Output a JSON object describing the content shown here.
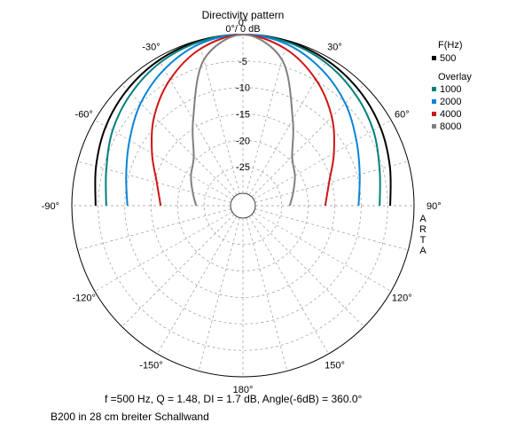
{
  "chart_data": {
    "type": "polar-line",
    "title": "Directivity pattern",
    "top_label": "0°/ 0 dB",
    "side_label": "ARTA",
    "radial_range_db": [
      -30,
      0
    ],
    "radial_ticks": [
      -5,
      -10,
      -15,
      -20,
      -25
    ],
    "angle_ticks": [
      "0°",
      "30°",
      "60°",
      "90°",
      "120°",
      "150°",
      "180°",
      "-150°",
      "-120°",
      "-90°",
      "-60°",
      "-30°"
    ],
    "grid": true,
    "legend": {
      "f_header": "F(Hz)",
      "f_items": [
        {
          "label": "500",
          "color": "#000000"
        }
      ],
      "overlay_header": "Overlay",
      "overlay_items": [
        {
          "label": "1000",
          "color": "#00807b"
        },
        {
          "label": "2000",
          "color": "#0a84d8"
        },
        {
          "label": "4000",
          "color": "#d01414"
        },
        {
          "label": "8000",
          "color": "#808080"
        }
      ]
    },
    "angles": [
      -90,
      -75,
      -60,
      -45,
      -30,
      -15,
      0,
      15,
      30,
      45,
      60,
      75,
      90
    ],
    "series": [
      {
        "name": "500",
        "color": "#000000",
        "values": [
          -4.5,
          -3.6,
          -2.4,
          -1.4,
          -0.6,
          -0.1,
          0,
          -0.1,
          -0.6,
          -1.4,
          -2.4,
          -3.6,
          -4.5
        ]
      },
      {
        "name": "1000",
        "color": "#00807b",
        "values": [
          -6.5,
          -5.6,
          -3.9,
          -2.4,
          -1.1,
          -0.3,
          0,
          -0.3,
          -1.1,
          -2.4,
          -3.9,
          -5.6,
          -6.5
        ]
      },
      {
        "name": "2000",
        "color": "#0a84d8",
        "values": [
          -10.5,
          -9.5,
          -7.6,
          -5.0,
          -2.6,
          -0.7,
          0,
          -0.7,
          -2.6,
          -5.0,
          -7.6,
          -9.5,
          -10.5
        ]
      },
      {
        "name": "4000",
        "color": "#d01414",
        "values": [
          -16.8,
          -15.5,
          -12.5,
          -8.6,
          -4.8,
          -1.6,
          0,
          -1.6,
          -4.8,
          -8.6,
          -12.5,
          -15.5,
          -16.8
        ]
      },
      {
        "name": "8000",
        "color": "#808080",
        "values": [
          -23.5,
          -22.5,
          -21.0,
          -19.2,
          -13.5,
          -3.8,
          0,
          -3.8,
          -13.5,
          -19.2,
          -21.0,
          -22.5,
          -23.5
        ]
      }
    ],
    "info_line": "f =500 Hz,  Q =  1.48,  DI =   1.7 dB, Angle(-6dB) = 360.0°",
    "caption": "B200 in 28 cm breiter Schallwand"
  }
}
